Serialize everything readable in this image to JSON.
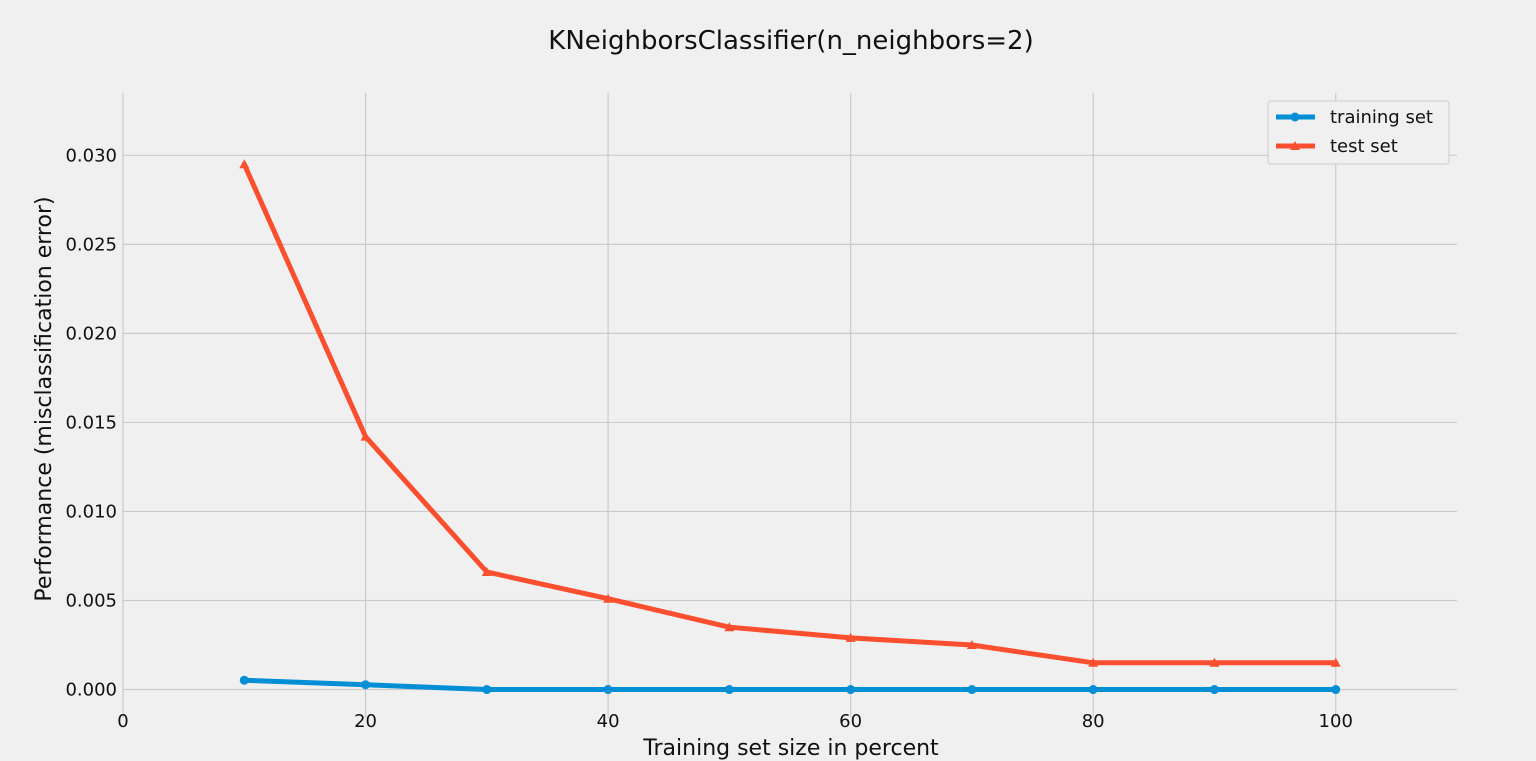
{
  "chart_data": {
    "type": "line",
    "title": "KNeighborsClassifier(n_neighbors=2)",
    "xlabel": "Training set size in percent",
    "ylabel": "Performance (misclassification error)",
    "xlim": [
      0,
      110
    ],
    "ylim": [
      -0.0016,
      0.0335
    ],
    "xticks": [
      0,
      20,
      40,
      60,
      80,
      100
    ],
    "xtick_labels": [
      "0",
      "20",
      "40",
      "60",
      "80",
      "100"
    ],
    "yticks": [
      0.0,
      0.005,
      0.01,
      0.015,
      0.02,
      0.025,
      0.03
    ],
    "ytick_labels": [
      "0.000",
      "0.005",
      "0.010",
      "0.015",
      "0.020",
      "0.025",
      "0.030"
    ],
    "grid": true,
    "legend_position": "top-right",
    "x": [
      10,
      20,
      30,
      40,
      50,
      60,
      70,
      80,
      90,
      100
    ],
    "series": [
      {
        "name": "training set",
        "color": "#008fd5",
        "marker": "circle",
        "values": [
          0.00052,
          0.00027,
          0.0,
          0.0,
          0.0,
          0.0,
          0.0,
          0.0,
          0.0,
          0.0
        ]
      },
      {
        "name": "test set",
        "color": "#fc4f30",
        "marker": "triangle",
        "values": [
          0.0295,
          0.0142,
          0.0066,
          0.0051,
          0.0035,
          0.0029,
          0.0025,
          0.0015,
          0.0015,
          0.0015
        ]
      }
    ]
  }
}
